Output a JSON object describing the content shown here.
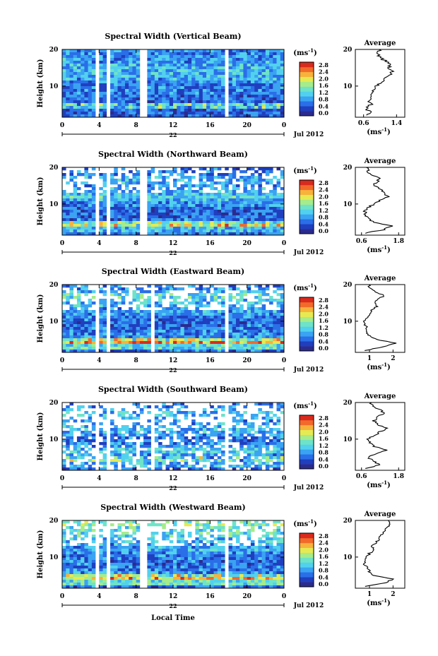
{
  "figure": {
    "colorbar_unit": "(ms",
    "colorbar_unit_sup": "-1",
    "colorbar_unit_close": ")",
    "colorbar_ticks": [
      "2.8",
      "2.4",
      "2.0",
      "1.6",
      "1.2",
      "0.8",
      "0.4",
      "0.0"
    ],
    "colorbar_colors": [
      "#2b2b8e",
      "#1f3fbf",
      "#2a6ee8",
      "#3aa3f2",
      "#52d1ee",
      "#6ee3c8",
      "#a6ec8a",
      "#e6ea52",
      "#f7b23c",
      "#f26a2a",
      "#d92a1e"
    ],
    "avg_title": "Average",
    "avg_xlabel": "(ms",
    "avg_xlabel_sup": "-1",
    "avg_xlabel_close": ")",
    "ylabel": "Height (km)",
    "date_label": "Jul 2012",
    "day_label": "22",
    "local_time_label": "Local Time"
  },
  "chart_data": [
    {
      "type": "heatmap",
      "title": "Spectral Width (Vertical Beam)",
      "xlabel": "",
      "ylabel": "Height (km)",
      "x_ticks": [
        "0",
        "4",
        "8",
        "12",
        "16",
        "20",
        "0"
      ],
      "y_ticks": [
        "20",
        "10"
      ],
      "ylim": [
        1.5,
        20
      ],
      "xlim": [
        0,
        24
      ],
      "color_range": [
        0,
        3
      ],
      "data_gaps_hours": [
        [
          3.7,
          4.1
        ],
        [
          4.8,
          5.2
        ],
        [
          8.6,
          9.0
        ],
        [
          17.6,
          18.0
        ]
      ],
      "average_profile": {
        "title": "Average",
        "x_ticks": [
          "0.6",
          "1.4"
        ],
        "xlim": [
          0.4,
          1.6
        ],
        "height": [
          2,
          3,
          4,
          5,
          6,
          7,
          8,
          9,
          10,
          11,
          12,
          13,
          14,
          15,
          16,
          17,
          18,
          19,
          20
        ],
        "value": [
          0.7,
          0.75,
          0.65,
          0.8,
          0.7,
          0.75,
          0.8,
          0.85,
          0.9,
          1.0,
          1.15,
          1.25,
          1.3,
          1.2,
          1.25,
          1.1,
          1.0,
          0.95,
          1.0
        ]
      }
    },
    {
      "type": "heatmap",
      "title": "Spectral Width (Northward Beam)",
      "xlabel": "",
      "ylabel": "Height (km)",
      "x_ticks": [
        "0",
        "4",
        "8",
        "12",
        "16",
        "20",
        "0"
      ],
      "y_ticks": [
        "20",
        "10"
      ],
      "ylim": [
        1.5,
        20
      ],
      "xlim": [
        0,
        24
      ],
      "color_range": [
        0,
        3
      ],
      "data_gaps_hours": [
        [
          3.7,
          4.1
        ],
        [
          4.8,
          5.2
        ],
        [
          8.6,
          9.0
        ]
      ],
      "average_profile": {
        "title": "Average",
        "x_ticks": [
          "0.6",
          "1.8"
        ],
        "xlim": [
          0.4,
          2.0
        ],
        "height": [
          2,
          3,
          4,
          5,
          6,
          7,
          8,
          9,
          10,
          11,
          12,
          13,
          14,
          15,
          16,
          17,
          18,
          19,
          20
        ],
        "value": [
          0.7,
          1.3,
          1.6,
          1.0,
          0.8,
          0.75,
          0.7,
          0.8,
          1.0,
          1.2,
          1.5,
          1.3,
          1.2,
          1.0,
          1.1,
          1.2,
          0.9,
          0.8,
          0.8
        ]
      }
    },
    {
      "type": "heatmap",
      "title": "Spectral Width (Eastward Beam)",
      "xlabel": "",
      "ylabel": "Height (km)",
      "x_ticks": [
        "0",
        "4",
        "8",
        "12",
        "16",
        "20",
        "0"
      ],
      "y_ticks": [
        "20",
        "10"
      ],
      "ylim": [
        1.5,
        20
      ],
      "xlim": [
        0,
        24
      ],
      "color_range": [
        0,
        3
      ],
      "data_gaps_hours": [
        [
          3.7,
          4.1
        ],
        [
          4.8,
          5.2
        ],
        [
          9.5,
          9.8
        ],
        [
          17.6,
          18.0
        ]
      ],
      "average_profile": {
        "title": "Average",
        "x_ticks": [
          "1",
          "2"
        ],
        "xlim": [
          0.4,
          2.5
        ],
        "height": [
          2,
          3,
          4,
          5,
          6,
          7,
          8,
          9,
          10,
          11,
          12,
          13,
          14,
          15,
          16,
          17,
          18,
          19,
          20
        ],
        "value": [
          0.8,
          1.6,
          2.1,
          1.3,
          1.0,
          0.9,
          0.9,
          0.8,
          0.8,
          0.9,
          1.0,
          1.1,
          1.3,
          1.2,
          1.4,
          1.6,
          1.3,
          1.0,
          1.0
        ]
      }
    },
    {
      "type": "heatmap",
      "title": "Spectral Width (Southward Beam)",
      "xlabel": "",
      "ylabel": "Height (km)",
      "x_ticks": [
        "0",
        "4",
        "8",
        "12",
        "16",
        "20",
        "0"
      ],
      "y_ticks": [
        "20",
        "10"
      ],
      "ylim": [
        1.5,
        20
      ],
      "xlim": [
        0,
        24
      ],
      "color_range": [
        0,
        3
      ],
      "data_gaps_hours": [
        [
          3.7,
          4.1
        ],
        [
          4.8,
          5.2
        ],
        [
          9.5,
          9.8
        ],
        [
          17.6,
          18.0
        ]
      ],
      "average_profile": {
        "title": "Average",
        "x_ticks": [
          "0.6",
          "1.8"
        ],
        "xlim": [
          0.4,
          2.0
        ],
        "height": [
          2,
          3,
          4,
          5,
          6,
          7,
          8,
          9,
          10,
          11,
          12,
          13,
          14,
          15,
          16,
          17,
          18,
          19,
          20
        ],
        "value": [
          0.7,
          1.2,
          1.0,
          0.8,
          1.1,
          1.4,
          1.0,
          0.9,
          0.8,
          1.0,
          1.2,
          1.4,
          1.1,
          1.0,
          1.1,
          1.3,
          1.2,
          1.0,
          0.9
        ]
      }
    },
    {
      "type": "heatmap",
      "title": "Spectral Width (Westward Beam)",
      "xlabel": "Local Time",
      "ylabel": "Height (km)",
      "x_ticks": [
        "0",
        "4",
        "8",
        "12",
        "16",
        "20",
        "0"
      ],
      "y_ticks": [
        "20",
        "10"
      ],
      "ylim": [
        1.5,
        20
      ],
      "xlim": [
        0,
        24
      ],
      "color_range": [
        0,
        3
      ],
      "data_gaps_hours": [
        [
          3.7,
          4.1
        ],
        [
          4.8,
          5.2
        ],
        [
          8.6,
          9.0
        ],
        [
          17.6,
          18.0
        ]
      ],
      "average_profile": {
        "title": "Average",
        "x_ticks": [
          "1",
          "2"
        ],
        "xlim": [
          0.4,
          2.5
        ],
        "height": [
          2,
          3,
          4,
          5,
          6,
          7,
          8,
          9,
          10,
          11,
          12,
          13,
          14,
          15,
          16,
          17,
          18,
          19,
          20
        ],
        "value": [
          0.8,
          1.7,
          2.0,
          1.2,
          1.0,
          0.9,
          0.8,
          0.8,
          0.9,
          1.0,
          1.2,
          1.1,
          1.3,
          1.4,
          1.5,
          1.6,
          1.7,
          1.9,
          1.8
        ]
      }
    }
  ]
}
